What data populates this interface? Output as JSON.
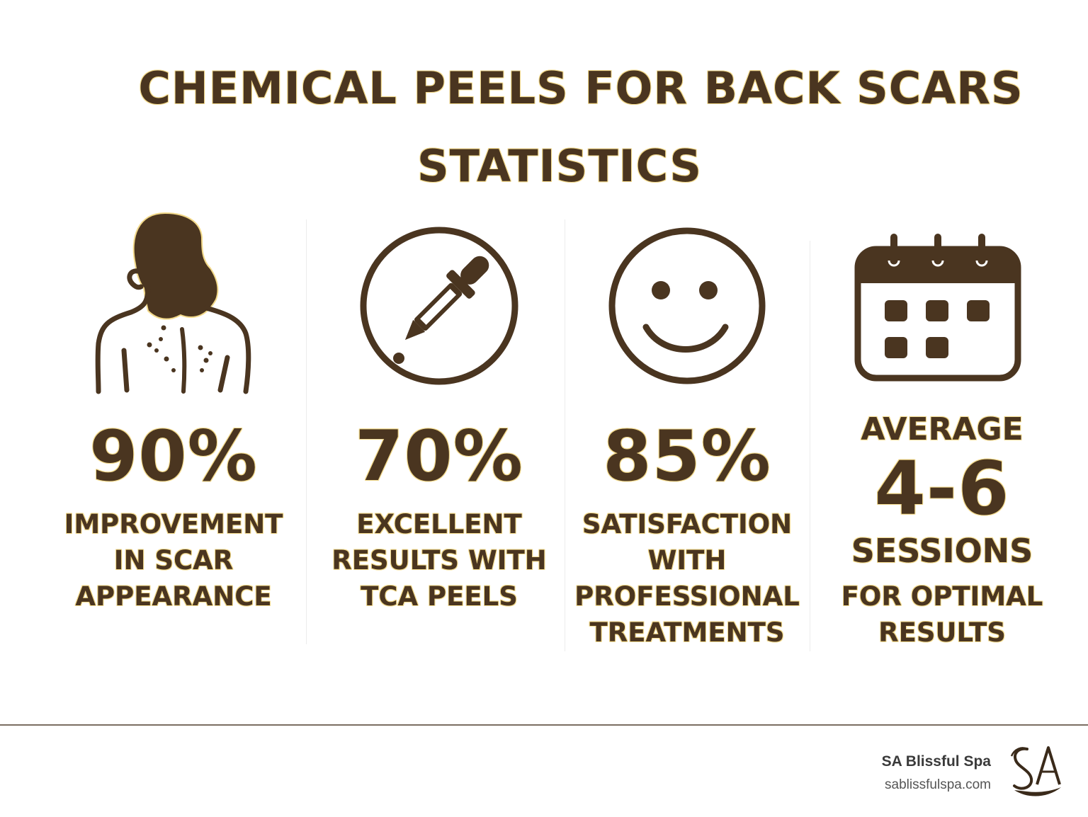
{
  "title": {
    "line1": "CHEMICAL PEELS FOR BACK SCARS",
    "line2": "STATISTICS"
  },
  "stats": [
    {
      "icon": "woman-back-icon",
      "value": "90%",
      "description": [
        "IMPROVEMENT",
        "IN SCAR",
        "APPEARANCE"
      ]
    },
    {
      "icon": "dropper-icon",
      "value": "70%",
      "description": [
        "EXCELLENT",
        "RESULTS WITH",
        "TCA PEELS"
      ]
    },
    {
      "icon": "smiley-face-icon",
      "value": "85%",
      "description": [
        "SATISFACTION",
        "WITH",
        "PROFESSIONAL",
        "TREATMENTS"
      ]
    },
    {
      "icon": "calendar-icon",
      "label": "AVERAGE",
      "value": "4-6",
      "unit": "SESSIONS",
      "description": [
        "FOR OPTIMAL",
        "RESULTS"
      ]
    }
  ],
  "footer": {
    "brand_name": "SA Blissful Spa",
    "brand_url": "sablissfulspa.com",
    "logo": "sa-monogram-logo"
  },
  "colors": {
    "text": "#4a3520",
    "outline": "#f2d98a",
    "background": "#ffffff",
    "rule": "#7a6e62"
  }
}
